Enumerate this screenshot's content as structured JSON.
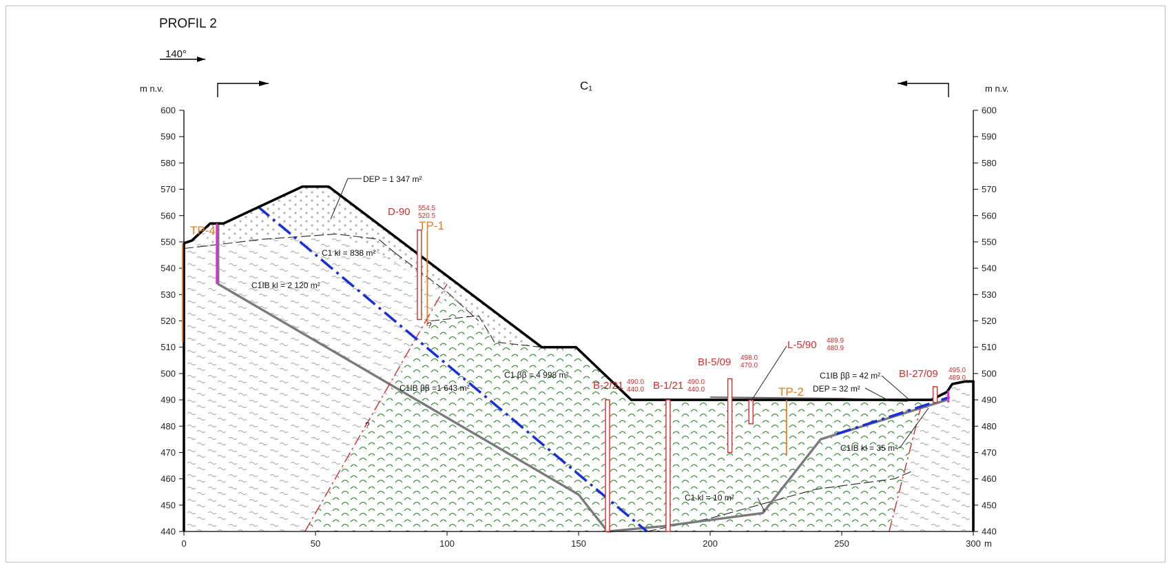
{
  "profile_title": "PROFIL 2",
  "bearing": "140°",
  "section_label": "C₁",
  "y_unit_left": "m n.v.",
  "y_unit_right": "m n.v.",
  "x_unit": "m",
  "colors": {
    "terrain": "#000000",
    "fault": "#d22b2b",
    "blue_line": "#1a2fd6",
    "gray_boundary": "#7a7a7a",
    "green_hatch": "#1f7a1f",
    "magenta": "#e22ad8",
    "orange": "#e67a1e"
  },
  "chart_data": {
    "type": "geological-cross-section",
    "xlim": [
      0,
      300
    ],
    "ylim": [
      440,
      600
    ],
    "x_ticks": [
      "0",
      "50",
      "100",
      "150",
      "200",
      "250",
      "300"
    ],
    "y_ticks": [
      "600",
      "590",
      "580",
      "570",
      "560",
      "550",
      "540",
      "530",
      "520",
      "510",
      "500",
      "490",
      "480",
      "470",
      "460",
      "450",
      "440"
    ],
    "terrain": [
      [
        0,
        549.5
      ],
      [
        3,
        550.5
      ],
      [
        10,
        557
      ],
      [
        15,
        557
      ],
      [
        45,
        571
      ],
      [
        55,
        571
      ],
      [
        136,
        510
      ],
      [
        149,
        510
      ],
      [
        170,
        490
      ],
      [
        284,
        490
      ],
      [
        290,
        493
      ],
      [
        292,
        496
      ],
      [
        297,
        497
      ],
      [
        300,
        497
      ]
    ],
    "areas": [
      {
        "label": "DEP = 1 347 m²"
      },
      {
        "label": "C1 kl = 838 m²"
      },
      {
        "label": "C1IB kl = 2 120 m²"
      },
      {
        "label": "C1 ββ = 4 998 m²"
      },
      {
        "label": "C1IB ββ =1 643 m²"
      },
      {
        "label": "C1IB ββ = 42 m²"
      },
      {
        "label": "DEP = 32 m²"
      },
      {
        "label": "C1IB kl = 35 m²"
      },
      {
        "label": "C1 kl = 10 m²"
      }
    ],
    "boreholes": [
      {
        "name": "D-90",
        "top": "554.5",
        "bottom": "520.5"
      },
      {
        "name": "TP-1"
      },
      {
        "name": "TP-4"
      },
      {
        "name": "B-2/21",
        "top": "490.0",
        "bottom": "440.0"
      },
      {
        "name": "B-1/21",
        "top": "490.0",
        "bottom": "440.0"
      },
      {
        "name": "BI-5/09",
        "top": "498.0",
        "bottom": "470.0"
      },
      {
        "name": "L-5/90",
        "top": "489.9",
        "bottom": "480.9"
      },
      {
        "name": "TP-2"
      },
      {
        "name": "BI-27/09",
        "top": "495.0",
        "bottom": "489.0"
      }
    ],
    "question_marks": [
      "?",
      "?"
    ]
  }
}
